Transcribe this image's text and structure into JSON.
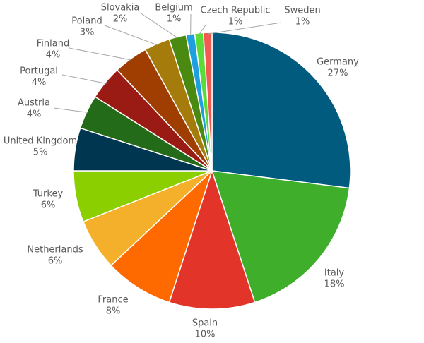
{
  "chart_data": {
    "type": "pie",
    "categories": [
      "Germany",
      "Italy",
      "Spain",
      "France",
      "Netherlands",
      "Turkey",
      "United Kingdom",
      "Austria",
      "Portugal",
      "Finland",
      "Poland",
      "Slovakia",
      "Belgium",
      "Czech Republic",
      "Sweden"
    ],
    "values": [
      27,
      18,
      10,
      8,
      6,
      6,
      5,
      4,
      4,
      4,
      3,
      2,
      1,
      1,
      1
    ],
    "value_labels": [
      "27%",
      "18%",
      "10%",
      "8%",
      "6%",
      "6%",
      "5%",
      "4%",
      "4%",
      "4%",
      "3%",
      "2%",
      "1%",
      "1%",
      "1%"
    ],
    "colors": [
      "#005b7f",
      "#3fae2a",
      "#e3342a",
      "#ff6a00",
      "#f4b02a",
      "#8ccf00",
      "#00364f",
      "#246b19",
      "#9a1a14",
      "#a03d00",
      "#a57c0c",
      "#4a8a10",
      "#1ea0e0",
      "#5cdb38",
      "#f05a50"
    ]
  }
}
